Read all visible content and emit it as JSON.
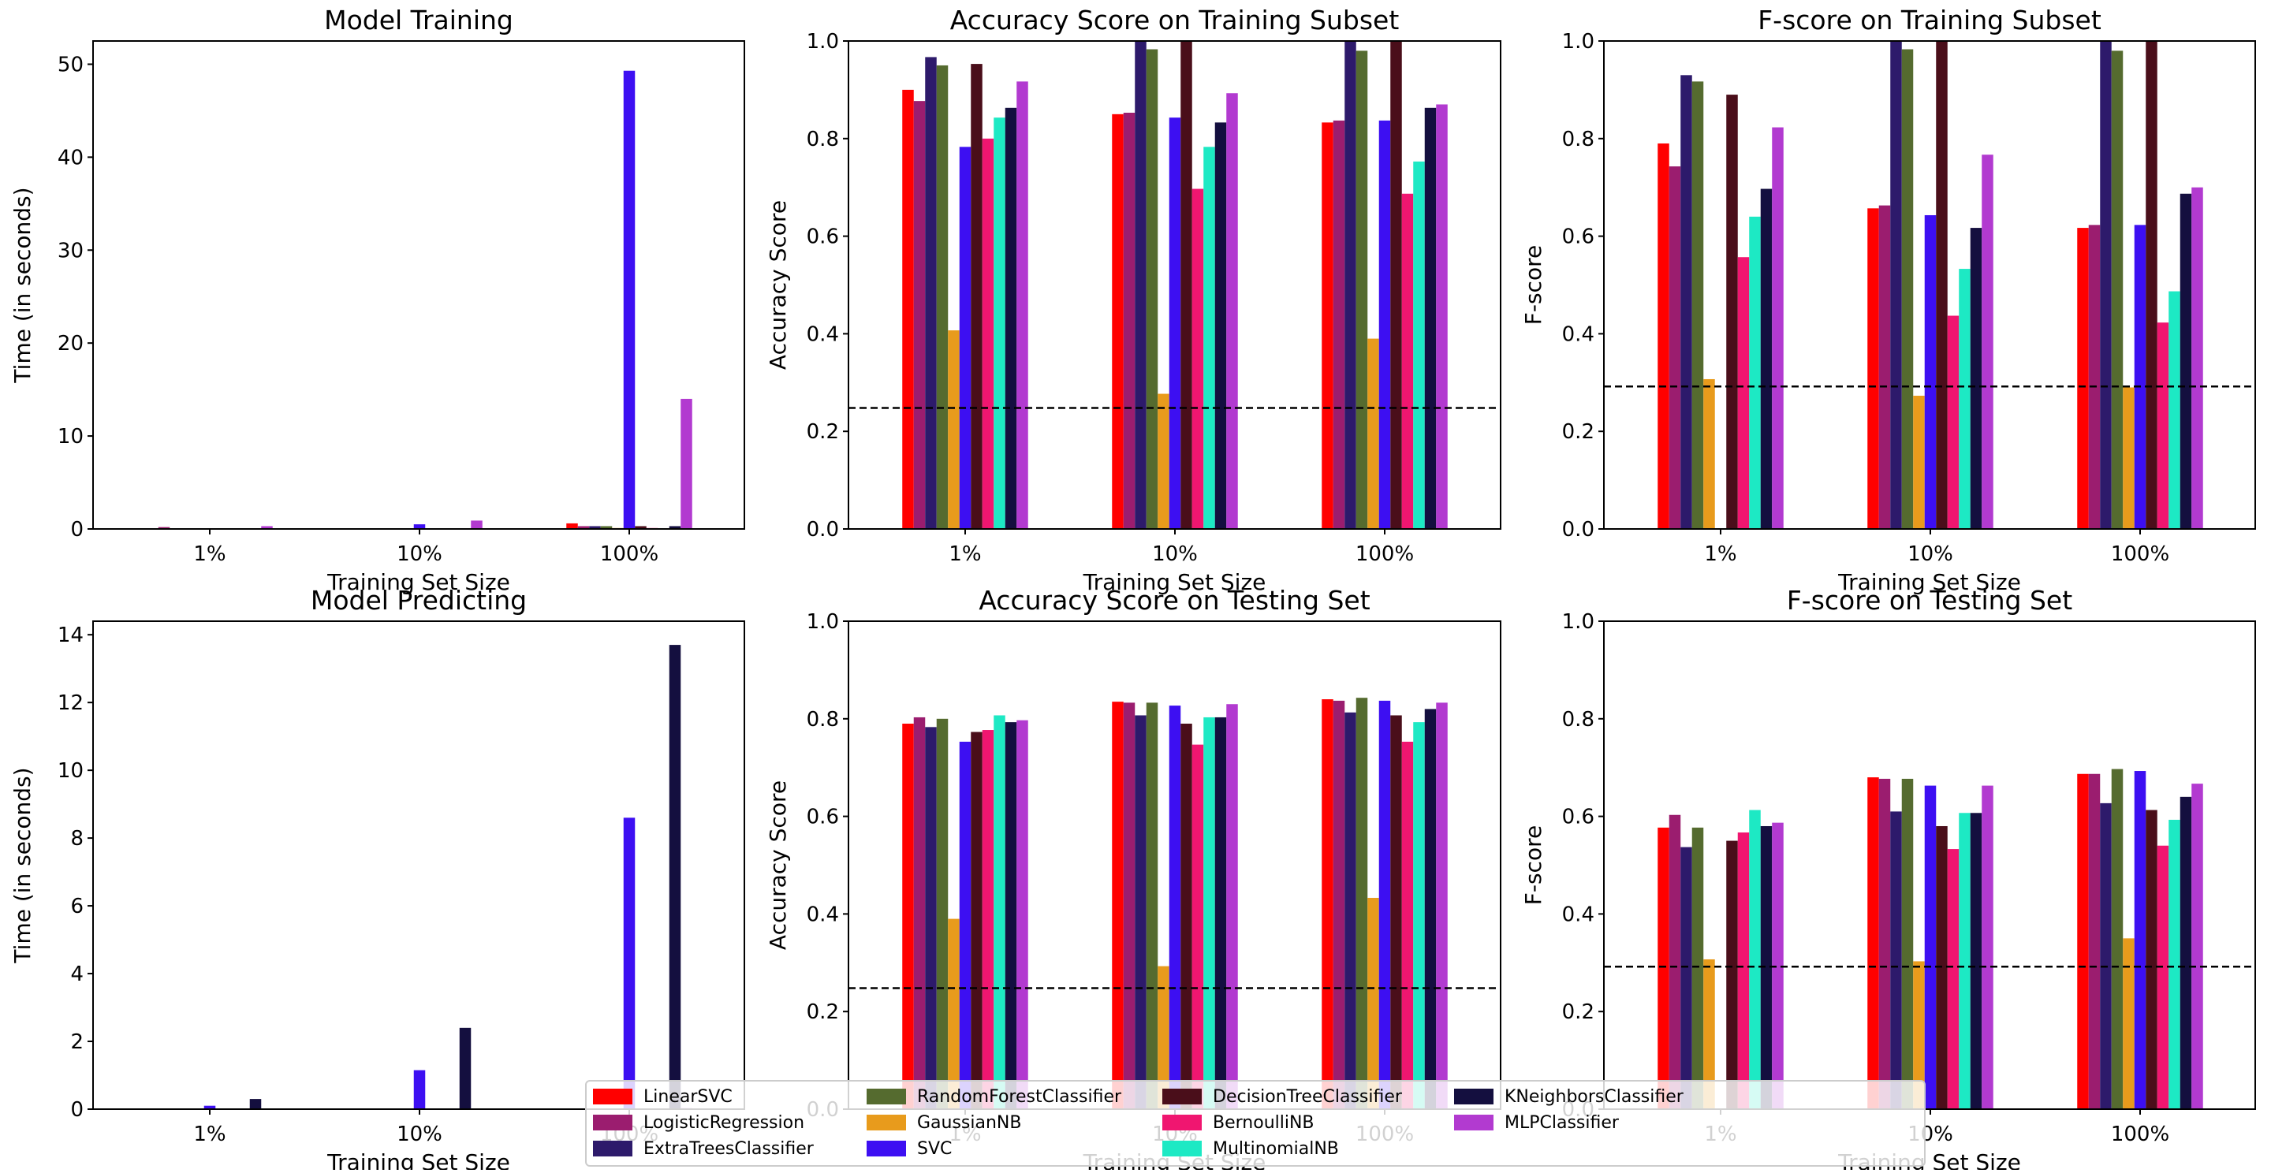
{
  "chart_data": [
    {
      "type": "bar",
      "title": "Model Training",
      "xlabel": "Training Set Size",
      "ylabel": "Time (in seconds)",
      "categories": [
        "1%",
        "10%",
        "100%"
      ],
      "ylim": [
        0,
        52.5
      ],
      "yticks": [
        0,
        10,
        20,
        30,
        40,
        50
      ],
      "yticklabels": [
        "0",
        "10",
        "20",
        "30",
        "40",
        "50"
      ],
      "baseline": null,
      "series": [
        {
          "name": "LinearSVC",
          "values": [
            0.0,
            0.01,
            0.6
          ]
        },
        {
          "name": "LogisticRegression",
          "values": [
            0.2,
            0.05,
            0.3
          ]
        },
        {
          "name": "ExtraTreesClassifier",
          "values": [
            0.01,
            0.05,
            0.3
          ]
        },
        {
          "name": "RandomForestClassifier",
          "values": [
            0.01,
            0.05,
            0.3
          ]
        },
        {
          "name": "GaussianNB",
          "values": [
            0.0,
            0.01,
            0.1
          ]
        },
        {
          "name": "SVC",
          "values": [
            0.05,
            0.5,
            49.3
          ]
        },
        {
          "name": "DecisionTreeClassifier",
          "values": [
            0.0,
            0.02,
            0.3
          ]
        },
        {
          "name": "BernoulliNB",
          "values": [
            0.0,
            0.01,
            0.1
          ]
        },
        {
          "name": "MultinomialNB",
          "values": [
            0.0,
            0.01,
            0.05
          ]
        },
        {
          "name": "KNeighborsClassifier",
          "values": [
            0.0,
            0.02,
            0.3
          ]
        },
        {
          "name": "MLPClassifier",
          "values": [
            0.3,
            0.9,
            14.0
          ]
        }
      ]
    },
    {
      "type": "bar",
      "title": "Accuracy Score on Training Subset",
      "xlabel": "Training Set Size",
      "ylabel": "Accuracy Score",
      "categories": [
        "1%",
        "10%",
        "100%"
      ],
      "ylim": [
        0,
        1.0
      ],
      "yticks": [
        0,
        0.2,
        0.4,
        0.6,
        0.8,
        1.0
      ],
      "yticklabels": [
        "0.0",
        "0.2",
        "0.4",
        "0.6",
        "0.8",
        "1.0"
      ],
      "baseline": 0.248,
      "series": [
        {
          "name": "LinearSVC",
          "values": [
            0.9,
            0.85,
            0.833
          ]
        },
        {
          "name": "LogisticRegression",
          "values": [
            0.877,
            0.853,
            0.837
          ]
        },
        {
          "name": "ExtraTreesClassifier",
          "values": [
            0.967,
            1.0,
            1.0
          ]
        },
        {
          "name": "RandomForestClassifier",
          "values": [
            0.95,
            0.983,
            0.98
          ]
        },
        {
          "name": "GaussianNB",
          "values": [
            0.407,
            0.277,
            0.39
          ]
        },
        {
          "name": "SVC",
          "values": [
            0.783,
            0.843,
            0.837
          ]
        },
        {
          "name": "DecisionTreeClassifier",
          "values": [
            0.953,
            1.0,
            1.0
          ]
        },
        {
          "name": "BernoulliNB",
          "values": [
            0.8,
            0.697,
            0.687
          ]
        },
        {
          "name": "MultinomialNB",
          "values": [
            0.843,
            0.783,
            0.753
          ]
        },
        {
          "name": "KNeighborsClassifier",
          "values": [
            0.863,
            0.833,
            0.863
          ]
        },
        {
          "name": "MLPClassifier",
          "values": [
            0.917,
            0.893,
            0.87
          ]
        }
      ]
    },
    {
      "type": "bar",
      "title": "F-score on Training Subset",
      "xlabel": "Training Set Size",
      "ylabel": "F-score",
      "categories": [
        "1%",
        "10%",
        "100%"
      ],
      "ylim": [
        0,
        1.0
      ],
      "yticks": [
        0,
        0.2,
        0.4,
        0.6,
        0.8,
        1.0
      ],
      "yticklabels": [
        "0.0",
        "0.2",
        "0.4",
        "0.6",
        "0.8",
        "1.0"
      ],
      "baseline": 0.292,
      "series": [
        {
          "name": "LinearSVC",
          "values": [
            0.79,
            0.657,
            0.617
          ]
        },
        {
          "name": "LogisticRegression",
          "values": [
            0.743,
            0.663,
            0.623
          ]
        },
        {
          "name": "ExtraTreesClassifier",
          "values": [
            0.93,
            1.0,
            1.0
          ]
        },
        {
          "name": "RandomForestClassifier",
          "values": [
            0.917,
            0.983,
            0.98
          ]
        },
        {
          "name": "GaussianNB",
          "values": [
            0.307,
            0.273,
            0.29
          ]
        },
        {
          "name": "SVC",
          "values": [
            0.0,
            0.643,
            0.623
          ]
        },
        {
          "name": "DecisionTreeClassifier",
          "values": [
            0.89,
            1.0,
            1.0
          ]
        },
        {
          "name": "BernoulliNB",
          "values": [
            0.557,
            0.437,
            0.423
          ]
        },
        {
          "name": "MultinomialNB",
          "values": [
            0.64,
            0.533,
            0.487
          ]
        },
        {
          "name": "KNeighborsClassifier",
          "values": [
            0.697,
            0.617,
            0.687
          ]
        },
        {
          "name": "MLPClassifier",
          "values": [
            0.823,
            0.767,
            0.7
          ]
        }
      ]
    },
    {
      "type": "bar",
      "title": "Model Predicting",
      "xlabel": "Training Set Size",
      "ylabel": "Time (in seconds)",
      "categories": [
        "1%",
        "10%",
        "100%"
      ],
      "ylim": [
        0,
        14.4
      ],
      "yticks": [
        0,
        2,
        4,
        6,
        8,
        10,
        12,
        14
      ],
      "yticklabels": [
        "0",
        "2",
        "4",
        "6",
        "8",
        "10",
        "12",
        "14"
      ],
      "baseline": null,
      "series": [
        {
          "name": "LinearSVC",
          "values": [
            0.0,
            0.0,
            0.01
          ]
        },
        {
          "name": "LogisticRegression",
          "values": [
            0.0,
            0.0,
            0.01
          ]
        },
        {
          "name": "ExtraTreesClassifier",
          "values": [
            0.0,
            0.0,
            0.02
          ]
        },
        {
          "name": "RandomForestClassifier",
          "values": [
            0.0,
            0.0,
            0.02
          ]
        },
        {
          "name": "GaussianNB",
          "values": [
            0.0,
            0.0,
            0.01
          ]
        },
        {
          "name": "SVC",
          "values": [
            0.1,
            1.15,
            8.6
          ]
        },
        {
          "name": "DecisionTreeClassifier",
          "values": [
            0.0,
            0.0,
            0.0
          ]
        },
        {
          "name": "BernoulliNB",
          "values": [
            0.0,
            0.0,
            0.01
          ]
        },
        {
          "name": "MultinomialNB",
          "values": [
            0.0,
            0.0,
            0.0
          ]
        },
        {
          "name": "KNeighborsClassifier",
          "values": [
            0.3,
            2.4,
            13.7
          ]
        },
        {
          "name": "MLPClassifier",
          "values": [
            0.0,
            0.0,
            0.03
          ]
        }
      ]
    },
    {
      "type": "bar",
      "title": "Accuracy Score on Testing Set",
      "xlabel": "Training Set Size",
      "ylabel": "Accuracy Score",
      "categories": [
        "1%",
        "10%",
        "100%"
      ],
      "ylim": [
        0,
        1.0
      ],
      "yticks": [
        0,
        0.2,
        0.4,
        0.6,
        0.8,
        1.0
      ],
      "yticklabels": [
        "0.0",
        "0.2",
        "0.4",
        "0.6",
        "0.8",
        "1.0"
      ],
      "baseline": 0.248,
      "series": [
        {
          "name": "LinearSVC",
          "values": [
            0.79,
            0.835,
            0.84
          ]
        },
        {
          "name": "LogisticRegression",
          "values": [
            0.803,
            0.833,
            0.837
          ]
        },
        {
          "name": "ExtraTreesClassifier",
          "values": [
            0.783,
            0.807,
            0.813
          ]
        },
        {
          "name": "RandomForestClassifier",
          "values": [
            0.8,
            0.833,
            0.843
          ]
        },
        {
          "name": "GaussianNB",
          "values": [
            0.39,
            0.293,
            0.433
          ]
        },
        {
          "name": "SVC",
          "values": [
            0.753,
            0.827,
            0.837
          ]
        },
        {
          "name": "DecisionTreeClassifier",
          "values": [
            0.773,
            0.79,
            0.807
          ]
        },
        {
          "name": "BernoulliNB",
          "values": [
            0.777,
            0.747,
            0.753
          ]
        },
        {
          "name": "MultinomialNB",
          "values": [
            0.807,
            0.803,
            0.793
          ]
        },
        {
          "name": "KNeighborsClassifier",
          "values": [
            0.793,
            0.803,
            0.82
          ]
        },
        {
          "name": "MLPClassifier",
          "values": [
            0.797,
            0.83,
            0.833
          ]
        }
      ]
    },
    {
      "type": "bar",
      "title": "F-score on Testing Set",
      "xlabel": "Training Set Size",
      "ylabel": "F-score",
      "categories": [
        "1%",
        "10%",
        "100%"
      ],
      "ylim": [
        0,
        1.0
      ],
      "yticks": [
        0,
        0.2,
        0.4,
        0.6,
        0.8,
        1.0
      ],
      "yticklabels": [
        "0.0",
        "0.2",
        "0.4",
        "0.6",
        "0.8",
        "1.0"
      ],
      "baseline": 0.292,
      "series": [
        {
          "name": "LinearSVC",
          "values": [
            0.577,
            0.68,
            0.687
          ]
        },
        {
          "name": "LogisticRegression",
          "values": [
            0.603,
            0.677,
            0.687
          ]
        },
        {
          "name": "ExtraTreesClassifier",
          "values": [
            0.537,
            0.61,
            0.627
          ]
        },
        {
          "name": "RandomForestClassifier",
          "values": [
            0.577,
            0.677,
            0.697
          ]
        },
        {
          "name": "GaussianNB",
          "values": [
            0.307,
            0.303,
            0.35
          ]
        },
        {
          "name": "SVC",
          "values": [
            0.0,
            0.663,
            0.693
          ]
        },
        {
          "name": "DecisionTreeClassifier",
          "values": [
            0.55,
            0.58,
            0.613
          ]
        },
        {
          "name": "BernoulliNB",
          "values": [
            0.567,
            0.533,
            0.54
          ]
        },
        {
          "name": "MultinomialNB",
          "values": [
            0.613,
            0.607,
            0.593
          ]
        },
        {
          "name": "KNeighborsClassifier",
          "values": [
            0.58,
            0.607,
            0.64
          ]
        },
        {
          "name": "MLPClassifier",
          "values": [
            0.587,
            0.663,
            0.667
          ]
        }
      ]
    }
  ],
  "legend": {
    "placement": "bottom-center",
    "items": [
      {
        "label": "LinearSVC",
        "color": "#ff0000"
      },
      {
        "label": "LogisticRegression",
        "color": "#9b1d6f"
      },
      {
        "label": "ExtraTreesClassifier",
        "color": "#2d1a6b"
      },
      {
        "label": "RandomForestClassifier",
        "color": "#556b2f"
      },
      {
        "label": "GaussianNB",
        "color": "#e89b1c"
      },
      {
        "label": "SVC",
        "color": "#3d0ff2"
      },
      {
        "label": "DecisionTreeClassifier",
        "color": "#4a0e1a"
      },
      {
        "label": "BernoulliNB",
        "color": "#f01670"
      },
      {
        "label": "MultinomialNB",
        "color": "#1de9c4"
      },
      {
        "label": "KNeighborsClassifier",
        "color": "#140f3f"
      },
      {
        "label": "MLPClassifier",
        "color": "#b23ad0"
      }
    ]
  }
}
